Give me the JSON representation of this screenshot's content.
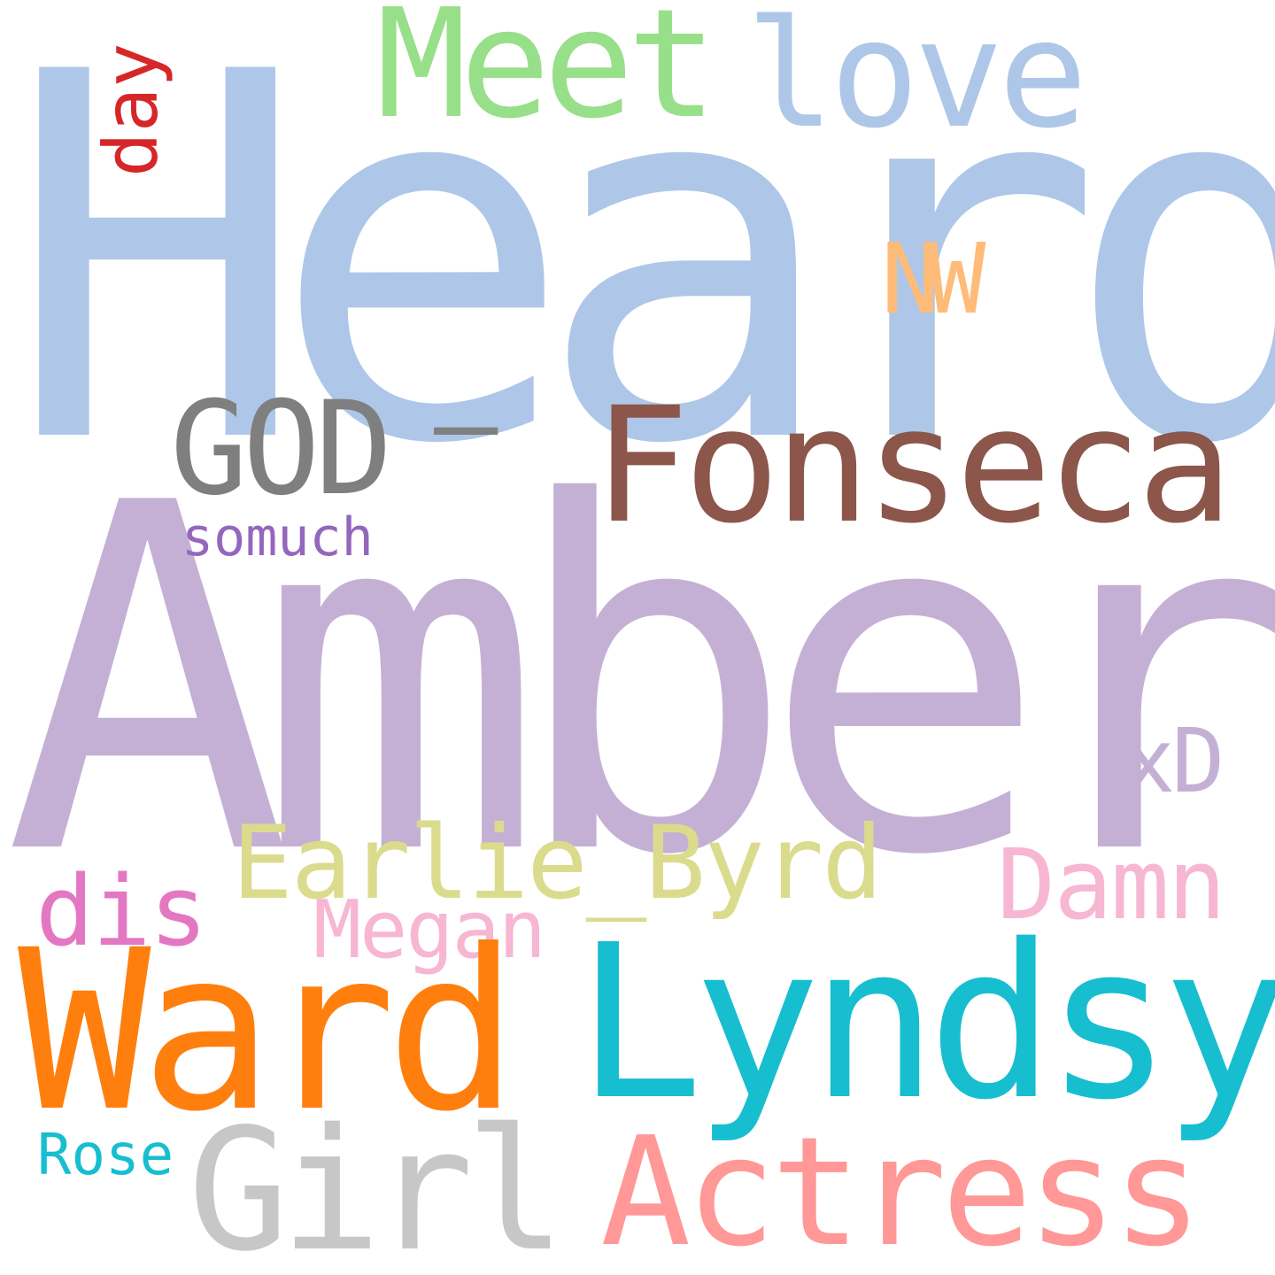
{
  "wordcloud": {
    "background": "#ffffff",
    "words": [
      {
        "id": "heard",
        "text": "Heard",
        "color": "#aec7e8",
        "orientation": "horizontal"
      },
      {
        "id": "amber",
        "text": "Amber",
        "color": "#c5b0d5",
        "orientation": "horizontal"
      },
      {
        "id": "meet",
        "text": "Meet",
        "color": "#98df8a",
        "orientation": "horizontal"
      },
      {
        "id": "love",
        "text": "love",
        "color": "#aec7e8",
        "orientation": "horizontal"
      },
      {
        "id": "day",
        "text": "day",
        "color": "#d62728",
        "orientation": "vertical"
      },
      {
        "id": "nw",
        "text": "NW",
        "color": "#ffbb78",
        "orientation": "horizontal"
      },
      {
        "id": "god",
        "text": "GOD",
        "color": "#7f7f7f",
        "orientation": "horizontal"
      },
      {
        "id": "dash",
        "text": "–",
        "color": "#7f7f7f",
        "orientation": "horizontal"
      },
      {
        "id": "fonseca",
        "text": "Fonseca",
        "color": "#8c564b",
        "orientation": "horizontal"
      },
      {
        "id": "somuch",
        "text": "somuch",
        "color": "#9467bd",
        "orientation": "horizontal"
      },
      {
        "id": "xd",
        "text": "xD",
        "color": "#c5b0d5",
        "orientation": "horizontal"
      },
      {
        "id": "earlie",
        "text": "Earlie_Byrd",
        "color": "#dbdb8d",
        "orientation": "horizontal"
      },
      {
        "id": "damn",
        "text": "Damn",
        "color": "#f7b6d2",
        "orientation": "horizontal"
      },
      {
        "id": "dis",
        "text": "dis",
        "color": "#e377c2",
        "orientation": "horizontal"
      },
      {
        "id": "megan",
        "text": "Megan",
        "color": "#f7b6d2",
        "orientation": "horizontal"
      },
      {
        "id": "ward",
        "text": "Ward",
        "color": "#ff7f0e",
        "orientation": "horizontal"
      },
      {
        "id": "lyndsy",
        "text": "Lyndsy",
        "color": "#17becf",
        "orientation": "horizontal"
      },
      {
        "id": "rose",
        "text": "Rose",
        "color": "#17becf",
        "orientation": "horizontal"
      },
      {
        "id": "girl",
        "text": "Girl",
        "color": "#c7c7c7",
        "orientation": "horizontal"
      },
      {
        "id": "actress",
        "text": "Actress",
        "color": "#ff9896",
        "orientation": "horizontal"
      }
    ]
  }
}
